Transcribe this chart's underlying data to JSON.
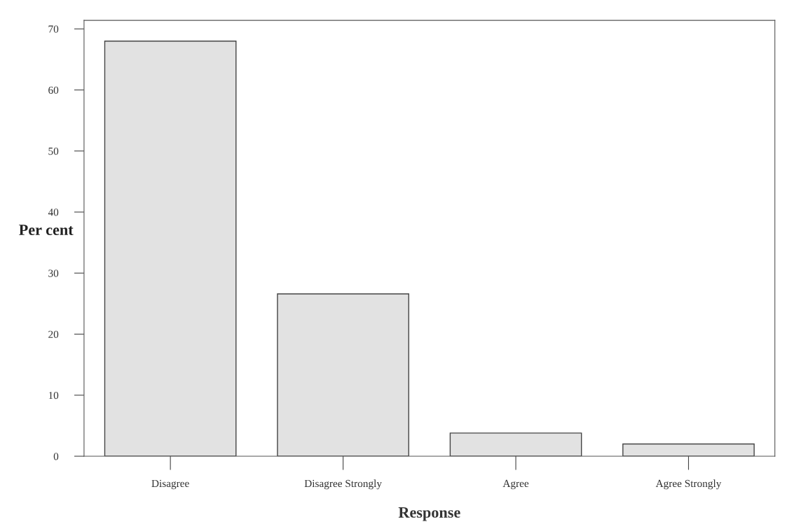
{
  "chart_data": {
    "type": "bar",
    "xlabel": "Response",
    "ylabel": "Per cent",
    "categories": [
      "Disagree",
      "Disagree Strongly",
      "Agree",
      "Agree Strongly"
    ],
    "values": [
      68,
      26.6,
      3.8,
      2
    ],
    "color": "#e2e2e2",
    "ylim": [
      0,
      71.4
    ],
    "yticks": [
      0,
      10,
      20,
      30,
      40,
      50,
      60,
      70
    ],
    "grid": false
  }
}
